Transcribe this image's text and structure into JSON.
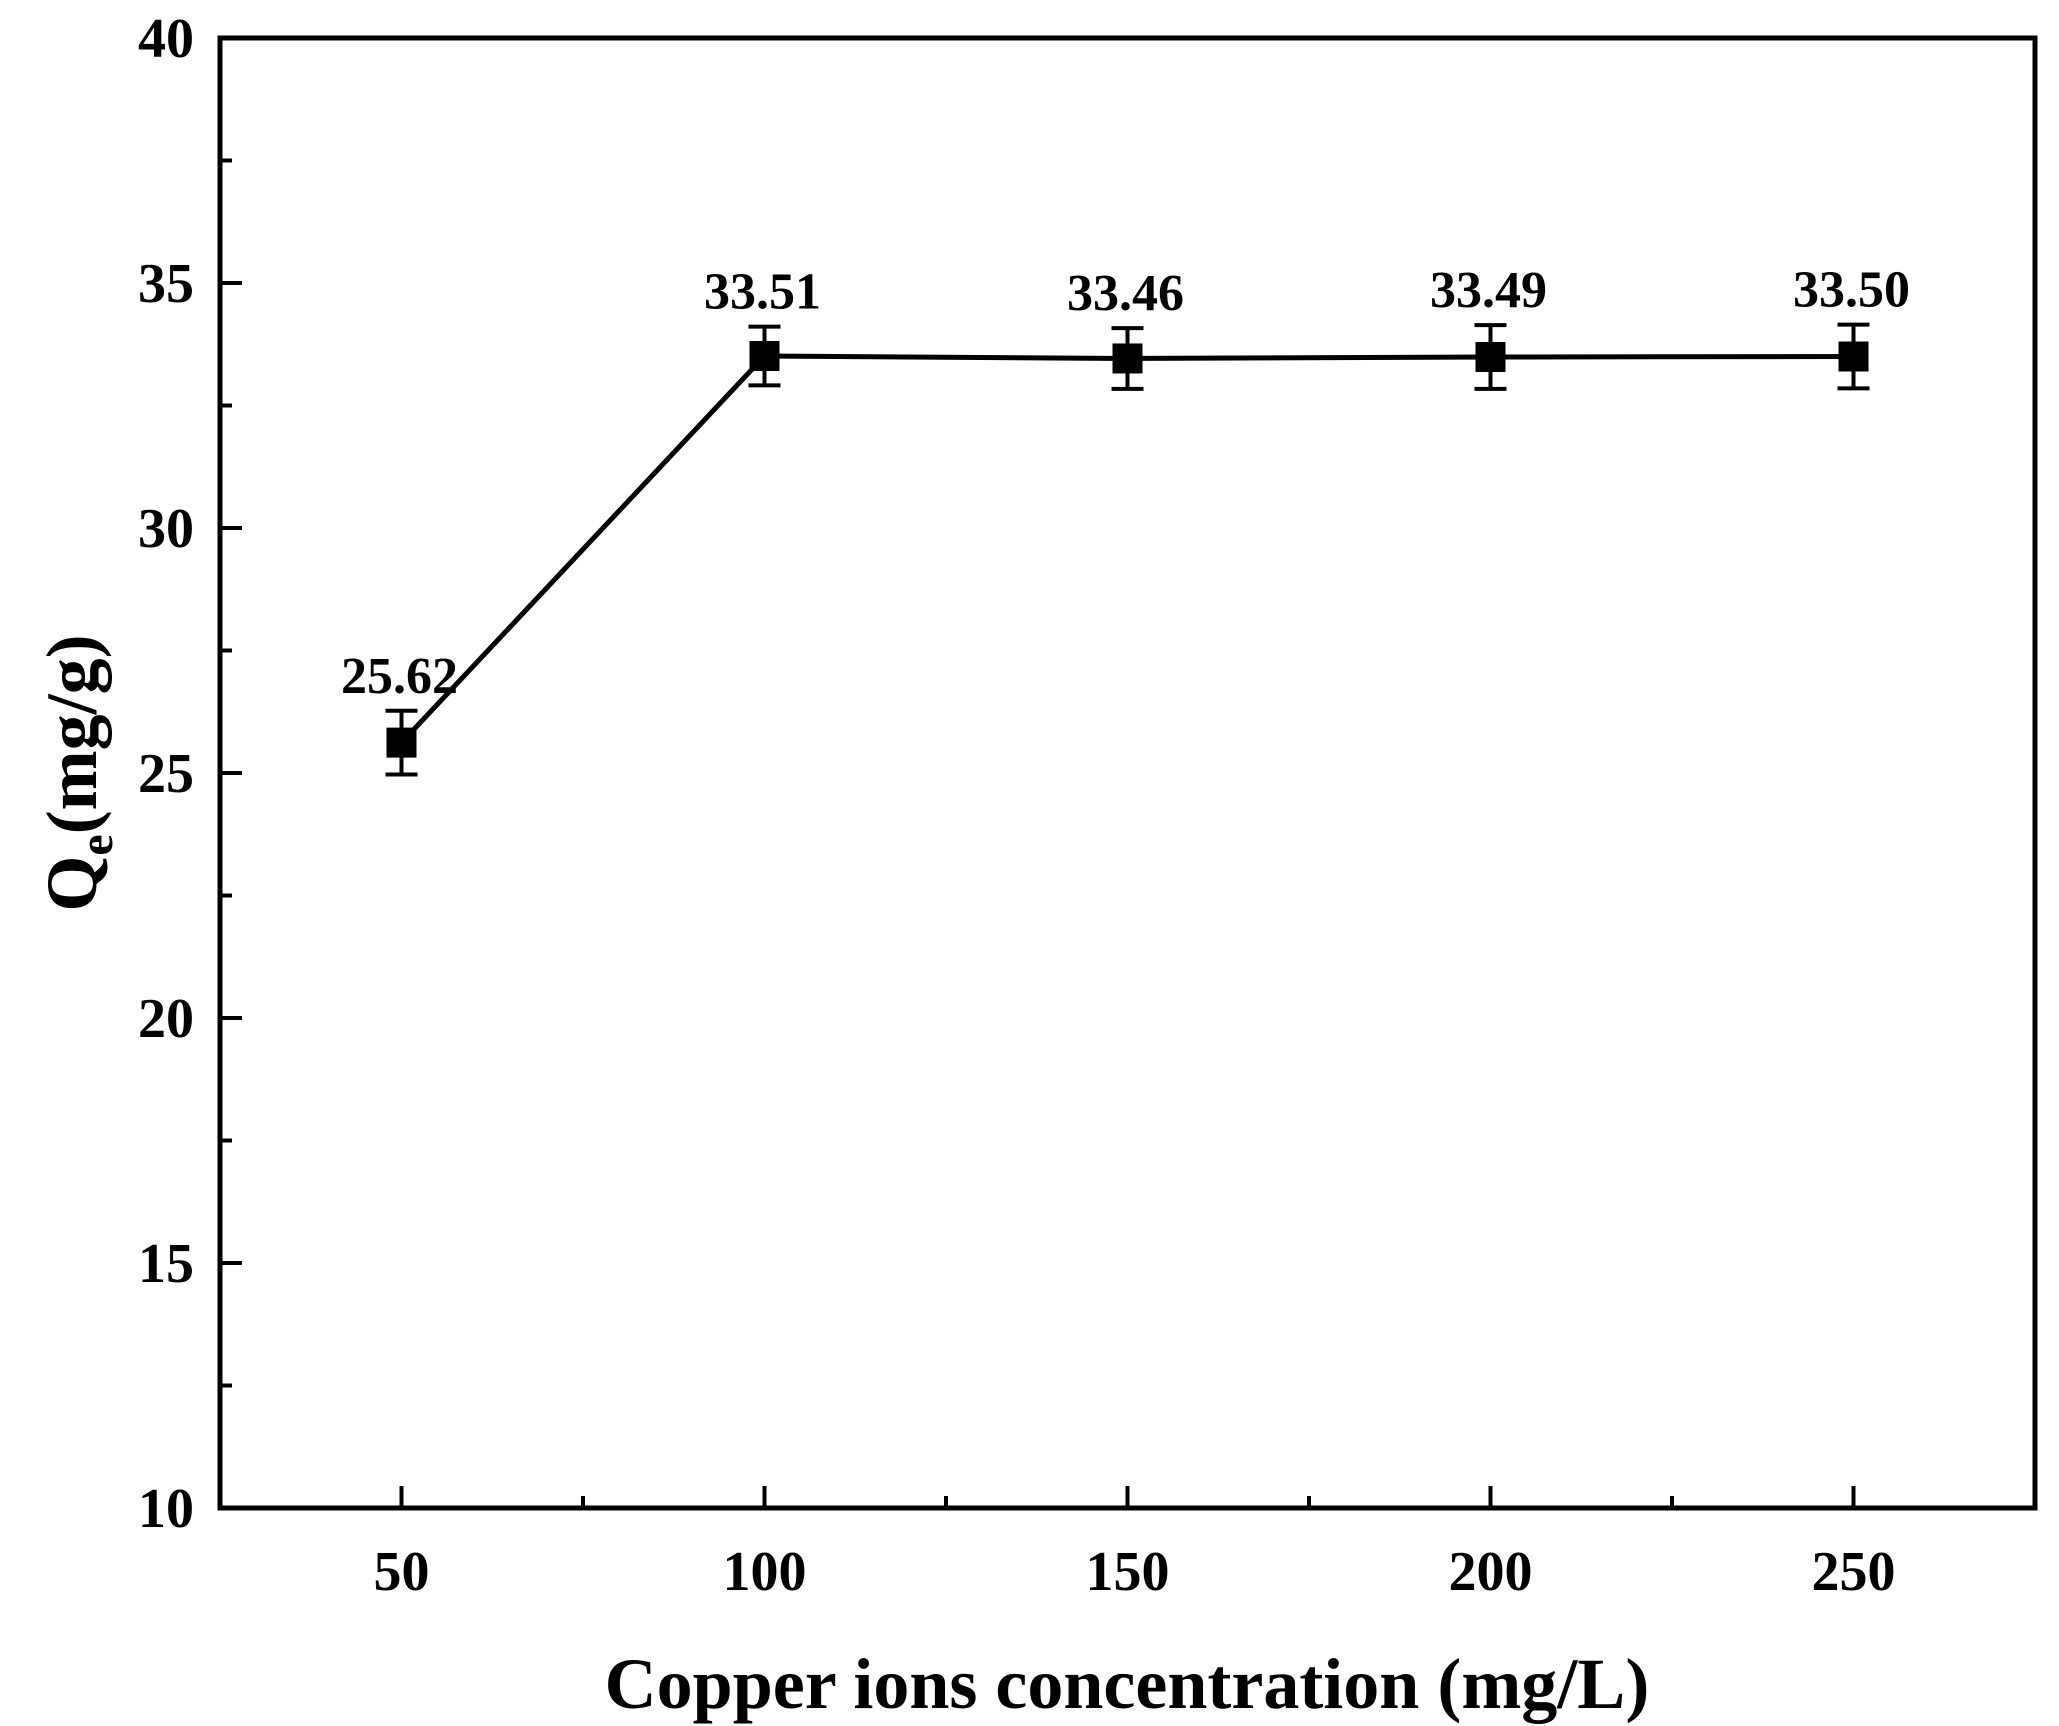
{
  "chart_data": {
    "type": "line",
    "title": "",
    "xlabel": "Copper ions concentration (mg/L)",
    "ylabel_main": "Q",
    "ylabel_sub": "e",
    "ylabel_unit": "(mg/g)",
    "xlim": [
      25,
      275
    ],
    "ylim": [
      10,
      40
    ],
    "x_ticks": [
      50,
      100,
      150,
      200,
      250
    ],
    "y_ticks": [
      10,
      15,
      20,
      25,
      30,
      35,
      40
    ],
    "grid": false,
    "series": [
      {
        "x": [
          50,
          100,
          150,
          200,
          250
        ],
        "y": [
          25.62,
          33.51,
          33.46,
          33.49,
          33.5
        ],
        "y_err": [
          0.65,
          0.6,
          0.62,
          0.65,
          0.65
        ],
        "data_labels": [
          "25.62",
          "33.51",
          "33.46",
          "33.49",
          "33.50"
        ],
        "marker": "square",
        "color": "#000000"
      }
    ]
  }
}
